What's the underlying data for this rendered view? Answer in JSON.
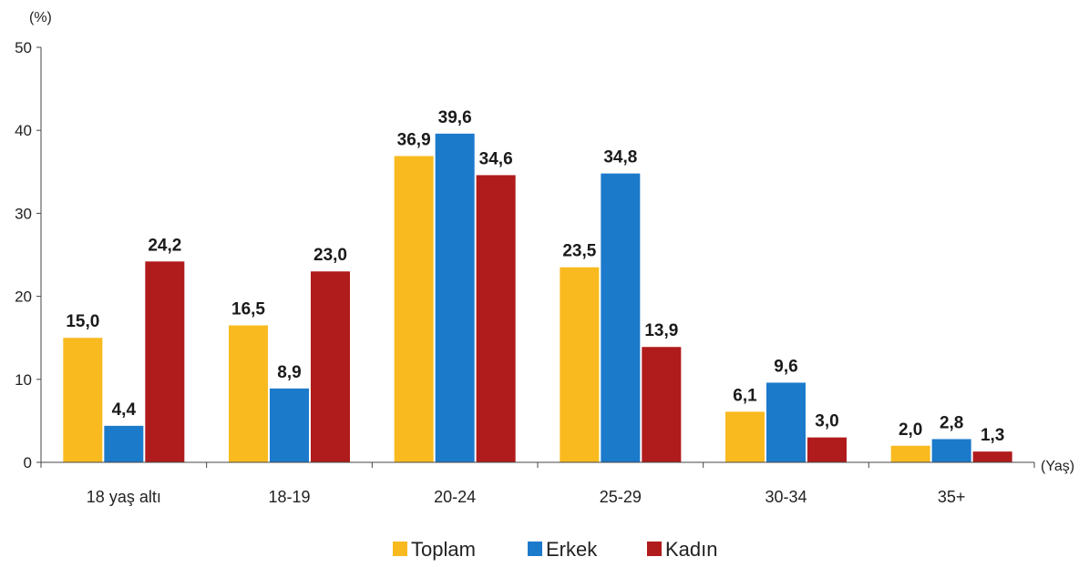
{
  "chart_data": {
    "type": "bar",
    "ylabel": "(%)",
    "xlabel": "(Yaş)",
    "ylim": [
      0,
      50
    ],
    "yticks": [
      "0",
      "10",
      "20",
      "30",
      "40",
      "50"
    ],
    "grid": false,
    "legend_position": "bottom",
    "categories": [
      "18 yaş altı",
      "18-19",
      "20-24",
      "25-29",
      "30-34",
      "35+"
    ],
    "series": [
      {
        "name": "Toplam",
        "color": "#F9BA20",
        "values": [
          15.0,
          16.5,
          36.9,
          23.5,
          6.1,
          2.0
        ],
        "labels": [
          "15,0",
          "16,5",
          "36,9",
          "23,5",
          "6,1",
          "2,0"
        ]
      },
      {
        "name": "Erkek",
        "color": "#1C7ACB",
        "values": [
          4.4,
          8.9,
          39.6,
          34.8,
          9.6,
          2.8
        ],
        "labels": [
          "4,4",
          "8,9",
          "39,6",
          "34,8",
          "9,6",
          "2,8"
        ]
      },
      {
        "name": "Kadın",
        "color": "#B01B1C",
        "values": [
          24.2,
          23.0,
          34.6,
          13.9,
          3.0,
          1.3
        ],
        "labels": [
          "24,2",
          "23,0",
          "34,6",
          "13,9",
          "3,0",
          "1,3"
        ]
      }
    ]
  }
}
